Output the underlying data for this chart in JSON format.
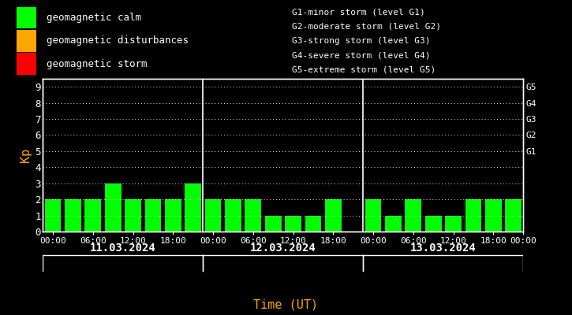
{
  "background_color": "#000000",
  "plot_bg_color": "#000000",
  "text_color": "#ffffff",
  "bar_color": "#00ff00",
  "ylabel_color": "#ffa500",
  "xlabel_color": "#ffa500",
  "grid_color": "#ffffff",
  "kp_values_day1": [
    2,
    2,
    2,
    3,
    2,
    2,
    2,
    3
  ],
  "kp_values_day2": [
    2,
    2,
    2,
    1,
    1,
    1,
    2,
    0
  ],
  "kp_values_day3": [
    2,
    1,
    2,
    1,
    1,
    2,
    2,
    2
  ],
  "dates": [
    "11.03.2024",
    "12.03.2024",
    "13.03.2024"
  ],
  "xlabel": "Time (UT)",
  "ylabel": "Kp",
  "ylim": [
    0,
    9.5
  ],
  "yticks": [
    0,
    1,
    2,
    3,
    4,
    5,
    6,
    7,
    8,
    9
  ],
  "g_levels_ticks": [
    5,
    6,
    7,
    8,
    9
  ],
  "g_levels_labels": [
    "G1",
    "G2",
    "G3",
    "G4",
    "G5"
  ],
  "legend_items": [
    {
      "label": "geomagnetic calm",
      "color": "#00ff00"
    },
    {
      "label": "geomagnetic disturbances",
      "color": "#ffa500"
    },
    {
      "label": "geomagnetic storm",
      "color": "#ff0000"
    }
  ],
  "g_labels": [
    "G1-minor storm (level G1)",
    "G2-moderate storm (level G2)",
    "G3-strong storm (level G3)",
    "G4-severe storm (level G4)",
    "G5-extreme storm (level G5)"
  ],
  "xtick_labels": [
    "00:00",
    "06:00",
    "12:00",
    "18:00",
    "00:00",
    "06:00",
    "12:00",
    "18:00",
    "00:00",
    "06:00",
    "12:00",
    "18:00",
    "00:00"
  ],
  "bar_width": 0.82,
  "separator_color": "#ffffff",
  "day_label_color": "#ffffff",
  "day_label_fontsize": 10,
  "xtick_fontsize": 8,
  "ytick_fontsize": 9,
  "g_label_fontsize": 8,
  "legend_fontsize": 9
}
